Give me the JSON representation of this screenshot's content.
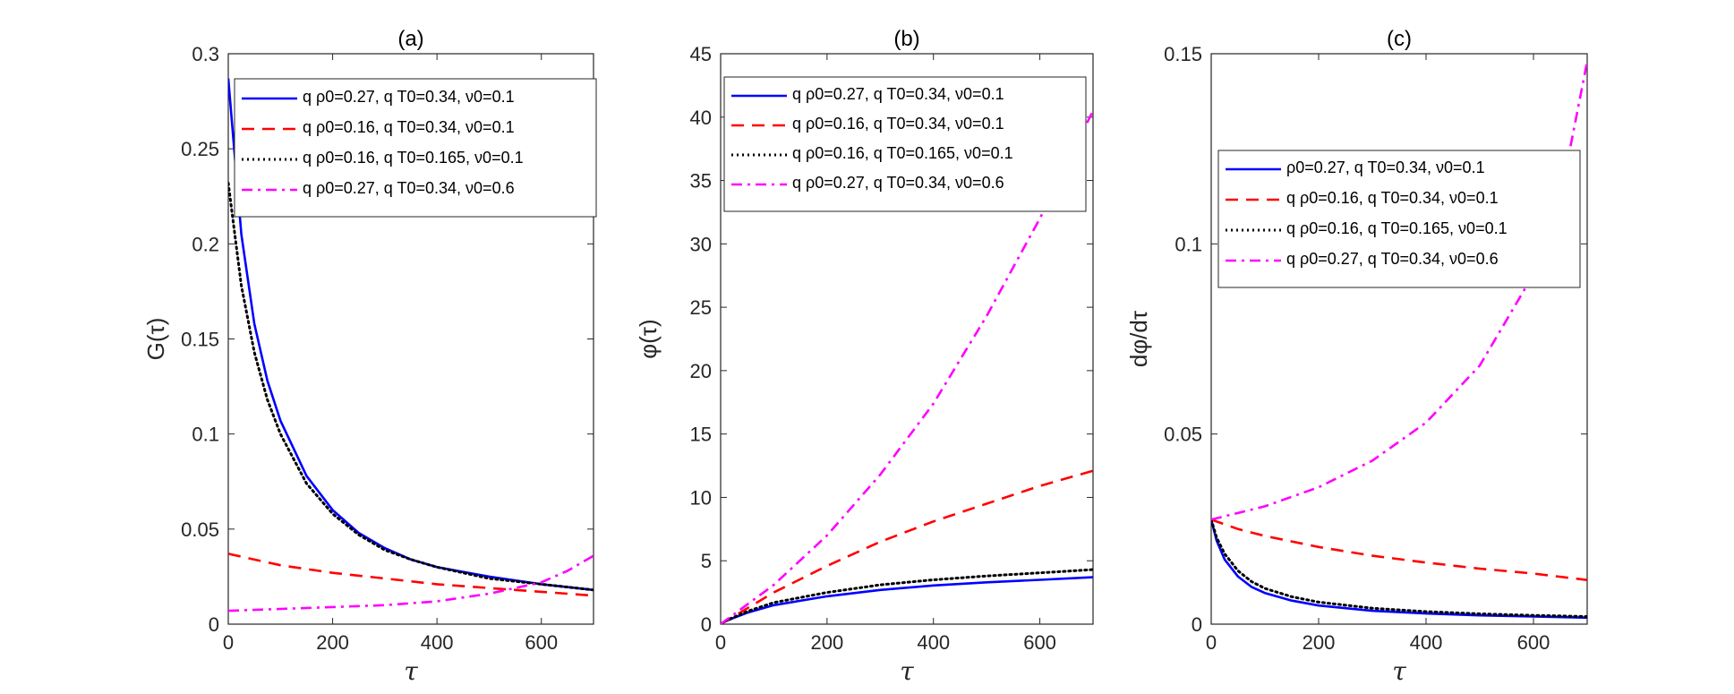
{
  "colors": {
    "blue": "#0000ff",
    "red": "#ff0000",
    "black": "#000000",
    "magenta": "#ff00ff"
  },
  "chart_data": [
    {
      "panel": "a",
      "type": "line",
      "title": "(a)",
      "xlabel": "τ",
      "ylabel": "G(τ)",
      "xlim": [
        0,
        700
      ],
      "ylim": [
        0,
        0.3
      ],
      "xticks": [
        "0",
        "200",
        "400",
        "600"
      ],
      "yticks": [
        "0",
        "0.05",
        "0.1",
        "0.15",
        "0.2",
        "0.25",
        "0.3"
      ],
      "legend_position": "top-right",
      "series": [
        {
          "name": "q_ρ0=0.27, q_T0=0.34, ν0=0.1",
          "legend_text": "q ρ0=0.27, q T0=0.34, ν0=0.1",
          "color": "#0000ff",
          "style": "solid",
          "x": [
            0,
            25,
            50,
            75,
            100,
            150,
            200,
            250,
            300,
            350,
            400,
            500,
            600,
            700
          ],
          "y": [
            0.287,
            0.205,
            0.158,
            0.128,
            0.107,
            0.078,
            0.06,
            0.048,
            0.04,
            0.034,
            0.03,
            0.025,
            0.021,
            0.018
          ]
        },
        {
          "name": "q_ρ0=0.16, q_T0=0.34, ν0=0.1",
          "legend_text": "q ρ0=0.16, q T0=0.34, ν0=0.1",
          "color": "#ff0000",
          "style": "dashed",
          "x": [
            0,
            100,
            200,
            300,
            400,
            500,
            600,
            700
          ],
          "y": [
            0.037,
            0.031,
            0.027,
            0.024,
            0.021,
            0.019,
            0.017,
            0.015
          ]
        },
        {
          "name": "q_ρ0=0.16, q_T0=0.165, ν0=0.1",
          "legend_text": "q ρ0=0.16, q T0=0.165, ν0=0.1",
          "color": "#000000",
          "style": "dotted",
          "x": [
            0,
            25,
            50,
            75,
            100,
            150,
            200,
            250,
            300,
            350,
            400,
            500,
            600,
            700
          ],
          "y": [
            0.232,
            0.178,
            0.143,
            0.118,
            0.1,
            0.074,
            0.058,
            0.047,
            0.039,
            0.034,
            0.03,
            0.024,
            0.021,
            0.018
          ]
        },
        {
          "name": "q_ρ0=0.27, q_T0=0.34, ν0=0.6",
          "legend_text": "q ρ0=0.27, q T0=0.34, ν0=0.6",
          "color": "#ff00ff",
          "style": "dashdot",
          "x": [
            0,
            100,
            200,
            300,
            400,
            500,
            600,
            650,
            700
          ],
          "y": [
            0.007,
            0.008,
            0.009,
            0.01,
            0.012,
            0.016,
            0.022,
            0.028,
            0.036
          ]
        }
      ]
    },
    {
      "panel": "b",
      "type": "line",
      "title": "(b)",
      "xlabel": "τ",
      "ylabel": "φ(τ)",
      "xlim": [
        0,
        700
      ],
      "ylim": [
        0,
        45
      ],
      "xticks": [
        "0",
        "200",
        "400",
        "600"
      ],
      "yticks": [
        "0",
        "5",
        "10",
        "15",
        "20",
        "25",
        "30",
        "35",
        "40",
        "45"
      ],
      "legend_position": "top-right",
      "series": [
        {
          "name": "q_ρ0=0.27, q_T0=0.34, ν0=0.1",
          "legend_text": "q ρ0=0.27, q T0=0.34, ν0=0.1",
          "color": "#0000ff",
          "style": "solid",
          "x": [
            0,
            10,
            25,
            50,
            100,
            200,
            300,
            400,
            500,
            600,
            700
          ],
          "y": [
            0,
            0.25,
            0.5,
            0.9,
            1.5,
            2.2,
            2.7,
            3.05,
            3.3,
            3.5,
            3.7
          ]
        },
        {
          "name": "q_ρ0=0.16, q_T0=0.34, ν0=0.1",
          "legend_text": "q ρ0=0.16, q T0=0.34, ν0=0.1",
          "color": "#ff0000",
          "style": "dashed",
          "x": [
            0,
            100,
            200,
            300,
            400,
            500,
            600,
            700
          ],
          "y": [
            0,
            2.5,
            4.6,
            6.5,
            8.1,
            9.5,
            10.9,
            12.1
          ]
        },
        {
          "name": "q_ρ0=0.16, q_T0=0.165, ν0=0.1",
          "legend_text": "q ρ0=0.16, q T0=0.165, ν0=0.1",
          "color": "#000000",
          "style": "dotted",
          "x": [
            0,
            10,
            25,
            50,
            100,
            200,
            300,
            400,
            500,
            600,
            700
          ],
          "y": [
            0,
            0.27,
            0.55,
            1.0,
            1.7,
            2.5,
            3.1,
            3.5,
            3.8,
            4.05,
            4.3
          ]
        },
        {
          "name": "q_ρ0=0.27, q_T0=0.34, ν0=0.6",
          "legend_text": "q ρ0=0.27, q T0=0.34, ν0=0.6",
          "color": "#ff00ff",
          "style": "dashdot",
          "x": [
            0,
            100,
            200,
            300,
            400,
            500,
            600,
            700
          ],
          "y": [
            0,
            3.1,
            7.0,
            11.8,
            17.4,
            24.3,
            32.0,
            40.5
          ]
        }
      ]
    },
    {
      "panel": "c",
      "type": "line",
      "title": "(c)",
      "xlabel": "τ",
      "ylabel": "dφ/dτ",
      "xlim": [
        0,
        700
      ],
      "ylim": [
        0,
        0.15
      ],
      "xticks": [
        "0",
        "200",
        "400",
        "600"
      ],
      "yticks": [
        "0",
        "0.05",
        "0.1",
        "0.15"
      ],
      "legend_position": "top-right",
      "series": [
        {
          "name": "ρ0=0.27, q_T0=0.34, ν0=0.1",
          "legend_text": "ρ0=0.27, q T0=0.34, ν0=0.1",
          "color": "#0000ff",
          "style": "solid",
          "x": [
            0,
            10,
            25,
            50,
            75,
            100,
            150,
            200,
            300,
            400,
            500,
            600,
            700
          ],
          "y": [
            0.0275,
            0.022,
            0.017,
            0.0125,
            0.0098,
            0.0082,
            0.0062,
            0.0049,
            0.0035,
            0.0028,
            0.0023,
            0.002,
            0.0017
          ]
        },
        {
          "name": "q_ρ0=0.16, q_T0=0.34, ν0=0.1",
          "legend_text": "q ρ0=0.16, q T0=0.34, ν0=0.1",
          "color": "#ff0000",
          "style": "dashed",
          "x": [
            0,
            50,
            100,
            200,
            300,
            400,
            500,
            600,
            700
          ],
          "y": [
            0.0275,
            0.025,
            0.0232,
            0.0203,
            0.018,
            0.0162,
            0.0146,
            0.0133,
            0.0116
          ]
        },
        {
          "name": "q_ρ0=0.16, q_T0=0.165, ν0=0.1",
          "legend_text": "q ρ0=0.16, q T0=0.165, ν0=0.1",
          "color": "#000000",
          "style": "dotted",
          "x": [
            0,
            10,
            25,
            50,
            75,
            100,
            150,
            200,
            300,
            400,
            500,
            600,
            700
          ],
          "y": [
            0.0275,
            0.0228,
            0.0185,
            0.014,
            0.0112,
            0.0094,
            0.0072,
            0.0058,
            0.0042,
            0.0033,
            0.0027,
            0.0023,
            0.002
          ]
        },
        {
          "name": "q_ρ0=0.27, q_T0=0.34, ν0=0.6",
          "legend_text": "q ρ0=0.27, q T0=0.34, ν0=0.6",
          "color": "#ff00ff",
          "style": "dashdot",
          "x": [
            0,
            100,
            200,
            300,
            400,
            500,
            600,
            650,
            700
          ],
          "y": [
            0.0275,
            0.031,
            0.036,
            0.043,
            0.053,
            0.068,
            0.092,
            0.112,
            0.148
          ]
        }
      ]
    }
  ]
}
